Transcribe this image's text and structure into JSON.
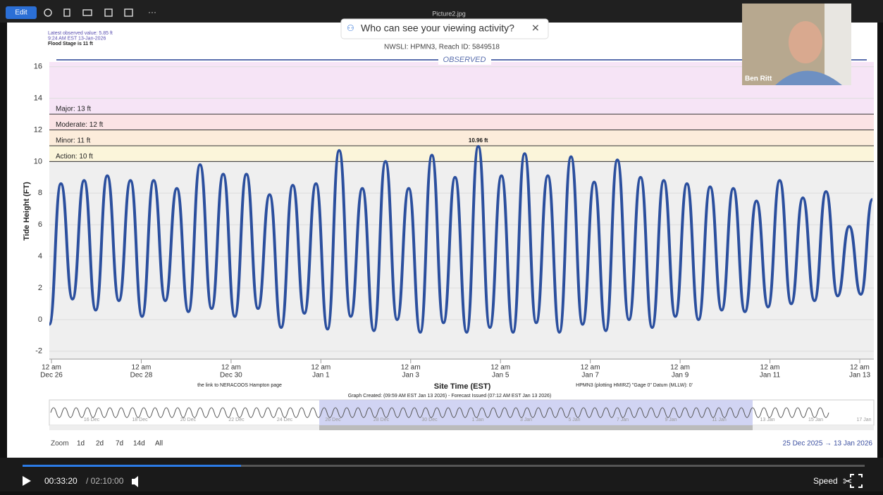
{
  "toolbar": {
    "edit": "Edit",
    "file_name": "Picture2.jpg"
  },
  "popup": {
    "text": "Who can see your viewing activity?"
  },
  "chart_data": {
    "type": "line",
    "subtitle": "NWSLI: HPMN3, Reach ID: 5849518",
    "header": "OBSERVED",
    "notes": [
      "Latest observed value: 5.85 ft",
      "9:24 AM EST 13-Jan-2026",
      "Flood Stage is 11 ft"
    ],
    "y_label": "Tide Height (FT)",
    "x_label": "Site Time (EST)",
    "footer": [
      "the link to NERACOOS Hampton page",
      "HPMN3 (plotting HMIRZ) \"Gage 0\" Datum (MLLW): 0'",
      "Graph Created: (09:59 AM EST Jan 13 2026) - Forecast Issued (07:12 AM EST Jan 13 2026)"
    ],
    "ylim": [
      -2.5,
      16.3
    ],
    "yticks": [
      -2,
      0,
      2,
      4,
      6,
      8,
      10,
      12,
      14,
      16
    ],
    "grid": true,
    "xtick_labels": [
      [
        "12 am",
        "Dec 26"
      ],
      [
        "12 am",
        "Dec 28"
      ],
      [
        "12 am",
        "Dec 30"
      ],
      [
        "12 am",
        "Jan 1"
      ],
      [
        "12 am",
        "Jan 3"
      ],
      [
        "12 am",
        "Jan 5"
      ],
      [
        "12 am",
        "Jan 7"
      ],
      [
        "12 am",
        "Jan 9"
      ],
      [
        "12 am",
        "Jan 11"
      ],
      [
        "12 am",
        "Jan 13"
      ]
    ],
    "thresholds": [
      {
        "label": "Major: 13 ft",
        "value": 13,
        "color": "#f6e4f6"
      },
      {
        "label": "Moderate: 12 ft",
        "value": 12,
        "color": "#fbe3e5"
      },
      {
        "label": "Minor: 11 ft",
        "value": 11,
        "color": "#fcecdb"
      },
      {
        "label": "Action: 10 ft",
        "value": 10,
        "color": "#fbf5da"
      }
    ],
    "below_color": "#efefef",
    "series": [
      {
        "name": "Observed",
        "color": "#2b4f9e",
        "values": [
          -0.3,
          8.6,
          1.3,
          8.8,
          0.6,
          9.1,
          1.2,
          8.8,
          0.2,
          8.8,
          1.2,
          8.3,
          0.5,
          9.8,
          0.7,
          9.2,
          0.2,
          9.2,
          0.7,
          7.9,
          -0.5,
          8.5,
          0.4,
          8.6,
          -0.6,
          10.7,
          0.2,
          8.3,
          -0.7,
          10.0,
          0.0,
          8.3,
          -0.8,
          10.4,
          -0.2,
          9.0,
          -0.8,
          10.96,
          -0.5,
          9.1,
          -0.8,
          10.5,
          -0.2,
          9.1,
          -0.8,
          10.3,
          -0.3,
          8.7,
          -0.7,
          10.1,
          0.0,
          9.0,
          -0.5,
          8.8,
          0.2,
          8.6,
          0.0,
          8.4,
          0.6,
          8.3,
          0.5,
          7.5,
          0.8,
          8.8,
          1.0,
          7.7,
          1.2,
          8.1,
          1.5,
          5.9,
          1.6,
          7.6
        ]
      }
    ],
    "peak": {
      "value": 10.96,
      "label": "10.96 ft"
    }
  },
  "navigator": {
    "labels": [
      "16 Dec",
      "18 Dec",
      "20 Dec",
      "22 Dec",
      "24 Dec",
      "26 Dec",
      "28 Dec",
      "30 Dec",
      "1 Jan",
      "3 Jan",
      "5 Jan",
      "7 Jan",
      "9 Jan",
      "11 Jan",
      "13 Jan",
      "15 Jan",
      "17 Jan"
    ]
  },
  "zoom": {
    "label": "Zoom",
    "buttons": [
      "1d",
      "2d",
      "7d",
      "14d",
      "All"
    ]
  },
  "range": "25 Dec 2025 → 13 Jan 2026",
  "video": {
    "current_time": "00:33:20",
    "duration": "/ 02:10:00",
    "speed": "Speed"
  },
  "webcam": {
    "name": "Ben Ritt"
  }
}
